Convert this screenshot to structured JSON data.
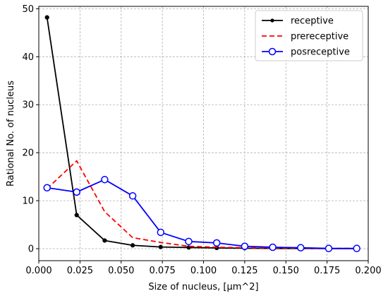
{
  "chart_data": {
    "type": "line",
    "title": "",
    "xlabel": "Size of nucleus, [μm^2]",
    "ylabel": "Rational No. of nucleus",
    "xlim": [
      0.0,
      0.2
    ],
    "ylim": [
      -2.5,
      50.5
    ],
    "x_ticks": [
      0.0,
      0.025,
      0.05,
      0.075,
      0.1,
      0.125,
      0.15,
      0.175,
      0.2
    ],
    "x_tick_labels": [
      "0.000",
      "0.025",
      "0.050",
      "0.075",
      "0.100",
      "0.125",
      "0.150",
      "0.175",
      "0.200"
    ],
    "y_ticks": [
      0,
      10,
      20,
      30,
      40,
      50
    ],
    "y_tick_labels": [
      "0",
      "10",
      "20",
      "30",
      "40",
      "50"
    ],
    "grid": true,
    "legend_position": "top-right",
    "series": [
      {
        "name": "receptive",
        "color": "#000000",
        "style": "solid",
        "marker": "dot",
        "x": [
          0.005,
          0.023,
          0.04,
          0.057,
          0.074,
          0.091,
          0.108,
          0.125,
          0.142,
          0.159,
          0.176,
          0.193
        ],
        "y": [
          48.2,
          7.0,
          1.7,
          0.7,
          0.35,
          0.25,
          0.15,
          0.1,
          0.05,
          0.05,
          0.02,
          0.02
        ]
      },
      {
        "name": "prereceptive",
        "color": "#ff0000",
        "style": "dashed",
        "marker": "none",
        "x": [
          0.005,
          0.023,
          0.04,
          0.057,
          0.074,
          0.091,
          0.108,
          0.125,
          0.142,
          0.159,
          0.176,
          0.193
        ],
        "y": [
          12.5,
          18.3,
          7.7,
          2.3,
          1.3,
          0.5,
          0.3,
          0.2,
          0.15,
          0.1,
          0.05,
          0.05
        ]
      },
      {
        "name": "posreceptive",
        "color": "#0000ff",
        "style": "solid",
        "marker": "open-circle",
        "x": [
          0.005,
          0.023,
          0.04,
          0.057,
          0.074,
          0.091,
          0.108,
          0.125,
          0.142,
          0.159,
          0.176,
          0.193
        ],
        "y": [
          12.7,
          11.8,
          14.4,
          11.0,
          3.4,
          1.5,
          1.2,
          0.5,
          0.3,
          0.2,
          0.05,
          0.05
        ]
      }
    ]
  }
}
